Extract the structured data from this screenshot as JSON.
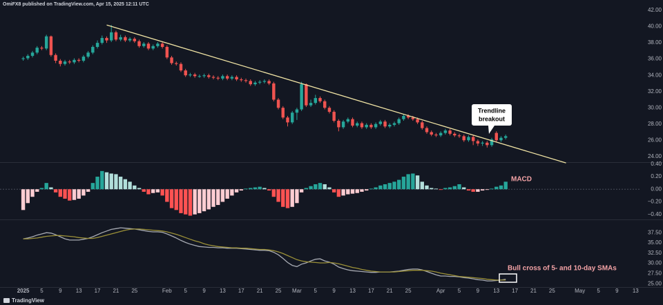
{
  "header": "OmiFX8 published on TradingView.com, Apr 15, 2025 12:11 UTC",
  "footer": "TradingView",
  "chart_data": {
    "type": "candlestick",
    "x": [
      "2025-01-01",
      "2025-01-02",
      "2025-01-03",
      "2025-01-04",
      "2025-01-05",
      "2025-01-06",
      "2025-01-07",
      "2025-01-08",
      "2025-01-09",
      "2025-01-10",
      "2025-01-11",
      "2025-01-12",
      "2025-01-13",
      "2025-01-14",
      "2025-01-15",
      "2025-01-16",
      "2025-01-17",
      "2025-01-18",
      "2025-01-19",
      "2025-01-20",
      "2025-01-21",
      "2025-01-22",
      "2025-01-23",
      "2025-01-24",
      "2025-01-25",
      "2025-01-26",
      "2025-01-27",
      "2025-01-28",
      "2025-01-29",
      "2025-01-30",
      "2025-01-31",
      "2025-02-01",
      "2025-02-02",
      "2025-02-03",
      "2025-02-04",
      "2025-02-05",
      "2025-02-06",
      "2025-02-07",
      "2025-02-08",
      "2025-02-09",
      "2025-02-10",
      "2025-02-11",
      "2025-02-12",
      "2025-02-13",
      "2025-02-14",
      "2025-02-15",
      "2025-02-16",
      "2025-02-17",
      "2025-02-18",
      "2025-02-19",
      "2025-02-20",
      "2025-02-21",
      "2025-02-22",
      "2025-02-23",
      "2025-02-24",
      "2025-02-25",
      "2025-02-26",
      "2025-02-27",
      "2025-02-28",
      "2025-03-01",
      "2025-03-02",
      "2025-03-03",
      "2025-03-04",
      "2025-03-05",
      "2025-03-06",
      "2025-03-07",
      "2025-03-08",
      "2025-03-09",
      "2025-03-10",
      "2025-03-11",
      "2025-03-12",
      "2025-03-13",
      "2025-03-14",
      "2025-03-15",
      "2025-03-16",
      "2025-03-17",
      "2025-03-18",
      "2025-03-19",
      "2025-03-20",
      "2025-03-21",
      "2025-03-22",
      "2025-03-23",
      "2025-03-24",
      "2025-03-25",
      "2025-03-26",
      "2025-03-27",
      "2025-03-28",
      "2025-03-29",
      "2025-03-30",
      "2025-03-31",
      "2025-04-01",
      "2025-04-02",
      "2025-04-03",
      "2025-04-04",
      "2025-04-05",
      "2025-04-06",
      "2025-04-07",
      "2025-04-08",
      "2025-04-09",
      "2025-04-10",
      "2025-04-11",
      "2025-04-12",
      "2025-04-13",
      "2025-04-14",
      "2025-04-15"
    ],
    "open": [
      36.0,
      36.1,
      36.4,
      36.8,
      37.4,
      37.3,
      38.8,
      36.5,
      35.8,
      35.4,
      35.7,
      35.6,
      35.9,
      35.8,
      36.3,
      36.8,
      37.5,
      38.0,
      38.6,
      38.3,
      39.3,
      38.4,
      38.7,
      38.3,
      38.5,
      38.2,
      37.6,
      37.9,
      37.3,
      37.6,
      37.9,
      37.5,
      36.2,
      35.5,
      35.4,
      34.6,
      34.0,
      34.1,
      33.9,
      33.9,
      34.0,
      33.8,
      33.7,
      33.6,
      33.9,
      33.6,
      33.8,
      33.5,
      33.4,
      33.3,
      32.9,
      33.1,
      33.2,
      33.3,
      33.0,
      31.0,
      30.0,
      28.8,
      28.2,
      29.4,
      29.8,
      32.9,
      30.3,
      30.6,
      31.2,
      30.8,
      30.0,
      29.5,
      28.4,
      27.6,
      28.3,
      28.6,
      27.8,
      28.1,
      27.6,
      27.9,
      27.6,
      28.0,
      28.3,
      27.7,
      27.9,
      28.1,
      28.6,
      29.0,
      28.8,
      28.6,
      28.2,
      27.5,
      27.0,
      26.7,
      26.6,
      26.9,
      27.2,
      26.8,
      26.6,
      26.5,
      26.0,
      26.4,
      25.9,
      25.6,
      25.7,
      25.4,
      26.9,
      26.0,
      26.3
    ],
    "high": [
      36.3,
      36.6,
      37.0,
      37.6,
      37.6,
      39.0,
      38.9,
      36.7,
      36.0,
      35.9,
      35.9,
      36.1,
      36.1,
      36.5,
      37.0,
      37.7,
      38.3,
      38.9,
      38.8,
      40.2,
      39.5,
      39.0,
      38.9,
      38.7,
      38.7,
      38.4,
      38.1,
      38.1,
      37.8,
      38.1,
      38.1,
      37.7,
      36.4,
      35.7,
      35.6,
      34.8,
      34.3,
      34.3,
      34.1,
      34.2,
      34.2,
      34.0,
      33.9,
      34.1,
      34.1,
      34.0,
      34.0,
      33.7,
      33.6,
      33.5,
      33.3,
      33.4,
      33.5,
      33.5,
      33.2,
      31.2,
      30.2,
      29.0,
      29.6,
      30.0,
      33.2,
      33.0,
      31.0,
      31.6,
      31.4,
      31.0,
      30.2,
      29.7,
      28.6,
      28.5,
      28.8,
      28.8,
      28.3,
      28.3,
      28.1,
      28.1,
      28.2,
      28.5,
      28.5,
      28.1,
      28.3,
      28.8,
      29.2,
      29.2,
      29.0,
      28.8,
      28.4,
      27.7,
      27.2,
      26.9,
      27.1,
      27.4,
      27.4,
      27.0,
      26.8,
      26.7,
      26.6,
      26.6,
      26.1,
      25.9,
      25.9,
      26.3,
      27.1,
      26.5,
      26.7
    ],
    "low": [
      35.8,
      35.9,
      36.2,
      36.6,
      37.1,
      37.1,
      36.3,
      35.5,
      35.1,
      35.2,
      35.4,
      35.4,
      35.6,
      35.6,
      36.1,
      36.6,
      37.3,
      37.8,
      38.0,
      38.1,
      38.2,
      38.2,
      38.1,
      38.1,
      38.0,
      37.4,
      37.4,
      37.1,
      37.1,
      37.4,
      37.3,
      36.0,
      35.3,
      35.2,
      34.4,
      33.8,
      33.8,
      33.7,
      33.7,
      33.7,
      33.6,
      33.5,
      33.4,
      33.4,
      33.4,
      33.4,
      33.3,
      33.2,
      33.1,
      32.7,
      32.7,
      32.9,
      33.0,
      32.8,
      30.8,
      29.8,
      28.6,
      27.7,
      28.0,
      28.5,
      29.6,
      30.1,
      30.1,
      30.4,
      30.6,
      29.8,
      29.3,
      28.2,
      27.1,
      27.4,
      28.1,
      27.6,
      27.6,
      27.4,
      27.4,
      27.4,
      27.4,
      27.8,
      27.5,
      27.5,
      27.7,
      27.9,
      28.4,
      28.6,
      28.4,
      28.0,
      27.3,
      26.8,
      26.5,
      26.4,
      26.4,
      26.7,
      26.6,
      26.4,
      26.3,
      25.8,
      25.8,
      25.4,
      25.3,
      25.3,
      25.1,
      25.2,
      25.8,
      25.8,
      26.1
    ],
    "close": [
      36.1,
      36.4,
      36.8,
      37.4,
      37.3,
      38.8,
      36.5,
      35.8,
      35.4,
      35.7,
      35.6,
      35.9,
      35.8,
      36.3,
      36.8,
      37.5,
      38.0,
      38.6,
      38.3,
      39.3,
      38.4,
      38.7,
      38.3,
      38.5,
      38.2,
      37.6,
      37.9,
      37.3,
      37.6,
      37.9,
      37.5,
      36.2,
      35.5,
      35.4,
      34.6,
      34.0,
      34.1,
      33.9,
      33.9,
      34.0,
      33.8,
      33.7,
      33.6,
      33.9,
      33.6,
      33.8,
      33.5,
      33.4,
      33.3,
      32.9,
      33.1,
      33.2,
      33.3,
      33.0,
      31.0,
      30.0,
      28.8,
      28.2,
      29.4,
      29.8,
      32.9,
      30.3,
      30.6,
      31.2,
      30.8,
      30.0,
      29.5,
      28.4,
      27.6,
      28.3,
      28.6,
      27.8,
      28.1,
      27.6,
      27.9,
      27.6,
      28.0,
      28.3,
      27.7,
      27.9,
      28.1,
      28.6,
      29.0,
      28.8,
      28.6,
      28.2,
      27.5,
      27.0,
      26.7,
      26.6,
      26.9,
      27.2,
      26.8,
      26.6,
      26.5,
      26.0,
      26.4,
      25.9,
      25.6,
      25.7,
      25.4,
      26.1,
      26.0,
      26.3,
      26.5
    ],
    "up_color": "#26a69a",
    "down_color": "#ef5350",
    "xlim": [
      "2024-12-27",
      "2025-05-14"
    ],
    "xticks": [
      {
        "value": "2025-01-01",
        "label": "2025"
      },
      {
        "value": "2025-01-05",
        "label": "5"
      },
      {
        "value": "2025-01-09",
        "label": "9"
      },
      {
        "value": "2025-01-13",
        "label": "13"
      },
      {
        "value": "2025-01-17",
        "label": "17"
      },
      {
        "value": "2025-01-21",
        "label": "21"
      },
      {
        "value": "2025-01-25",
        "label": "25"
      },
      {
        "value": "2025-02-01",
        "label": "Feb"
      },
      {
        "value": "2025-02-05",
        "label": "5"
      },
      {
        "value": "2025-02-09",
        "label": "9"
      },
      {
        "value": "2025-02-13",
        "label": "13"
      },
      {
        "value": "2025-02-17",
        "label": "17"
      },
      {
        "value": "2025-02-21",
        "label": "21"
      },
      {
        "value": "2025-02-25",
        "label": "25"
      },
      {
        "value": "2025-03-01",
        "label": "Mar"
      },
      {
        "value": "2025-03-05",
        "label": "5"
      },
      {
        "value": "2025-03-09",
        "label": "9"
      },
      {
        "value": "2025-03-13",
        "label": "13"
      },
      {
        "value": "2025-03-17",
        "label": "17"
      },
      {
        "value": "2025-03-21",
        "label": "21"
      },
      {
        "value": "2025-03-25",
        "label": "25"
      },
      {
        "value": "2025-04-01",
        "label": "Apr"
      },
      {
        "value": "2025-04-05",
        "label": "5"
      },
      {
        "value": "2025-04-09",
        "label": "9"
      },
      {
        "value": "2025-04-13",
        "label": "13"
      },
      {
        "value": "2025-04-17",
        "label": "17"
      },
      {
        "value": "2025-04-21",
        "label": "21"
      },
      {
        "value": "2025-04-25",
        "label": "25"
      },
      {
        "value": "2025-05-01",
        "label": "May"
      },
      {
        "value": "2025-05-05",
        "label": "5"
      },
      {
        "value": "2025-05-09",
        "label": "9"
      },
      {
        "value": "2025-05-13",
        "label": "13"
      }
    ],
    "ylim": [
      23.3,
      42.6
    ],
    "yticks": [
      {
        "value": 24,
        "label": "24.00"
      },
      {
        "value": 26,
        "label": "26.00"
      },
      {
        "value": 28,
        "label": "28.00"
      },
      {
        "value": 30,
        "label": "30.00"
      },
      {
        "value": 32,
        "label": "32.00"
      },
      {
        "value": 34,
        "label": "34.00"
      },
      {
        "value": 36,
        "label": "36.00"
      },
      {
        "value": 38,
        "label": "38.00"
      },
      {
        "value": 40,
        "label": "40.00"
      },
      {
        "value": 42,
        "label": "42.00"
      }
    ],
    "trendline": {
      "x": [
        "2025-01-19",
        "2025-04-28"
      ],
      "values": [
        40.2,
        23.2
      ],
      "color": "#f3e6a6"
    },
    "annotations": [
      {
        "text": [
          "Trendline",
          "breakout"
        ]
      },
      {
        "text": "MACD",
        "color": "#f4a3a6"
      },
      {
        "text": "Bull cross of 5- and 10-day SMAs",
        "color": "#f4a3a6"
      }
    ],
    "panes": [
      {
        "type": "bar",
        "values": [
          -0.33,
          -0.22,
          -0.12,
          -0.04,
          0.02,
          0.1,
          0.03,
          -0.05,
          -0.12,
          -0.15,
          -0.18,
          -0.17,
          -0.15,
          -0.1,
          -0.04,
          0.1,
          0.2,
          0.29,
          0.27,
          0.25,
          0.24,
          0.2,
          0.16,
          0.12,
          0.06,
          0.02,
          -0.04,
          -0.08,
          -0.06,
          -0.05,
          -0.1,
          -0.2,
          -0.3,
          -0.33,
          -0.38,
          -0.4,
          -0.42,
          -0.4,
          -0.38,
          -0.35,
          -0.32,
          -0.28,
          -0.25,
          -0.2,
          -0.15,
          -0.1,
          -0.05,
          -0.02,
          0.01,
          0.02,
          0.03,
          0.04,
          0.02,
          -0.02,
          -0.12,
          -0.2,
          -0.28,
          -0.3,
          -0.28,
          -0.22,
          -0.05,
          0.02,
          0.05,
          0.08,
          0.1,
          0.08,
          0.03,
          -0.05,
          -0.12,
          -0.1,
          -0.08,
          -0.07,
          -0.06,
          -0.04,
          -0.02,
          0.01,
          0.03,
          0.06,
          0.08,
          0.1,
          0.12,
          0.15,
          0.2,
          0.24,
          0.25,
          0.22,
          0.12,
          0.06,
          0.02,
          0.01,
          -0.01,
          0.02,
          0.03,
          0.05,
          0.08,
          0.03,
          -0.02,
          -0.04,
          -0.04,
          -0.02,
          -0.01,
          0.01,
          0.04,
          0.06,
          0.12
        ],
        "colors": [
          "#26a69a",
          "#b2dfdb",
          "#ffcdd2",
          "#ff5252"
        ],
        "ylim": [
          -0.48,
          0.42
        ],
        "yticks": [
          {
            "value": -0.4,
            "label": "−0.40"
          },
          {
            "value": -0.2,
            "label": "−0.20"
          },
          {
            "value": 0,
            "label": "0.00"
          },
          {
            "value": 0.2,
            "label": "0.20"
          },
          {
            "value": 0.4,
            "label": "0.40"
          }
        ]
      },
      {
        "type": "line",
        "series": [
          {
            "color": "#a8abb3",
            "values": [
              36.0,
              36.2,
              36.5,
              36.9,
              37.2,
              37.5,
              37.4,
              37.0,
              36.5,
              36.0,
              35.7,
              35.7,
              35.7,
              35.9,
              36.1,
              36.5,
              37.0,
              37.5,
              37.9,
              38.3,
              38.5,
              38.7,
              38.6,
              38.5,
              38.4,
              38.2,
              38.0,
              37.8,
              37.7,
              37.7,
              37.6,
              37.2,
              36.7,
              36.2,
              35.6,
              35.1,
              34.7,
              34.4,
              34.1,
              34.0,
              33.9,
              33.9,
              33.8,
              33.8,
              33.7,
              33.7,
              33.7,
              33.6,
              33.5,
              33.4,
              33.3,
              33.2,
              33.2,
              33.1,
              32.7,
              32.1,
              31.2,
              30.2,
              29.5,
              29.2,
              29.8,
              30.1,
              30.6,
              31.0,
              31.1,
              30.6,
              30.3,
              29.8,
              29.1,
              28.7,
              28.4,
              28.2,
              28.1,
              28.0,
              27.9,
              27.8,
              27.8,
              27.9,
              27.9,
              27.9,
              28.0,
              28.1,
              28.3,
              28.5,
              28.6,
              28.6,
              28.4,
              28.0,
              27.6,
              27.2,
              26.9,
              26.9,
              26.8,
              26.8,
              26.7,
              26.5,
              26.4,
              26.2,
              26.0,
              25.9,
              25.7,
              25.7,
              25.8,
              25.9,
              26.1
            ]
          },
          {
            "color": "#9c9138",
            "values": [
              36.0,
              36.0,
              36.1,
              36.2,
              36.4,
              36.6,
              36.7,
              36.8,
              36.8,
              36.7,
              36.6,
              36.5,
              36.3,
              36.2,
              36.1,
              36.1,
              36.3,
              36.6,
              36.9,
              37.2,
              37.5,
              37.8,
              38.1,
              38.3,
              38.4,
              38.4,
              38.3,
              38.2,
              38.1,
              38.0,
              37.9,
              37.7,
              37.4,
              37.1,
              36.7,
              36.3,
              35.9,
              35.5,
              35.2,
              34.8,
              34.5,
              34.3,
              34.1,
              34.0,
              33.9,
              33.8,
              33.8,
              33.7,
              33.7,
              33.6,
              33.5,
              33.4,
              33.4,
              33.3,
              33.1,
              32.8,
              32.4,
              31.9,
              31.4,
              30.9,
              30.6,
              30.4,
              30.3,
              30.2,
              30.1,
              30.1,
              30.2,
              30.1,
              29.9,
              29.6,
              29.3,
              29.0,
              28.8,
              28.5,
              28.3,
              28.1,
              28.0,
              27.9,
              27.9,
              27.9,
              27.9,
              28.0,
              28.1,
              28.2,
              28.3,
              28.3,
              28.3,
              28.2,
              28.1,
              27.9,
              27.6,
              27.4,
              27.2,
              27.0,
              26.8,
              26.7,
              26.6,
              26.5,
              26.4,
              26.3,
              26.1,
              26.0,
              25.9,
              25.9,
              25.9
            ]
          }
        ],
        "ylim": [
          24.2,
          40.4
        ],
        "yticks": [
          {
            "value": 25,
            "label": "25.00"
          },
          {
            "value": 27.5,
            "label": "27.50"
          },
          {
            "value": 30,
            "label": "30.00"
          },
          {
            "value": 32.5,
            "label": "32.50"
          },
          {
            "value": 35,
            "label": "35.00"
          },
          {
            "value": 37.5,
            "label": "37.50"
          }
        ]
      }
    ]
  }
}
